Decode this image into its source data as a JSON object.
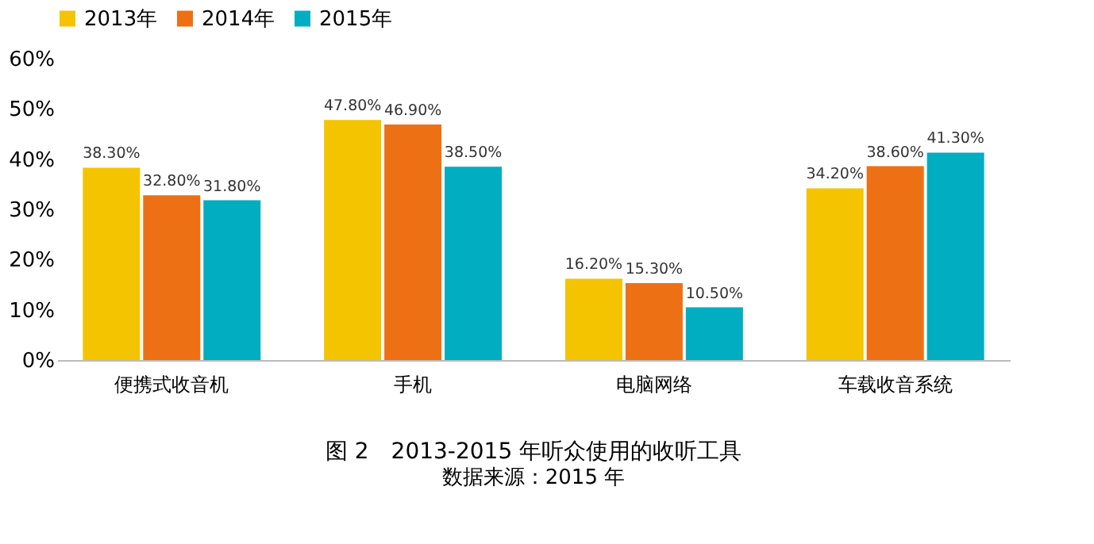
{
  "chart_data": {
    "type": "bar",
    "title": "图 2　2013-2015 年听众使用的收听工具",
    "annotations": [
      "数据来源：2015 年"
    ],
    "categories": [
      "便携式收音机",
      "手机",
      "电脑网络",
      "车载收音系统"
    ],
    "series": [
      {
        "name": "2013年",
        "color": "#f5c400",
        "values": [
          38.3,
          47.8,
          16.2,
          34.2
        ],
        "value_labels": [
          "38.30%",
          "47.80%",
          "16.20%",
          "34.20%"
        ]
      },
      {
        "name": "2014年",
        "color": "#ee7014",
        "values": [
          32.8,
          46.9,
          15.3,
          38.6
        ],
        "value_labels": [
          "32.80%",
          "46.90%",
          "15.30%",
          "38.60%"
        ]
      },
      {
        "name": "2015年",
        "color": "#00adc1",
        "values": [
          31.8,
          38.5,
          10.5,
          41.3
        ],
        "value_labels": [
          "31.80%",
          "38.50%",
          "10.50%",
          "41.30%"
        ]
      }
    ],
    "ylim": [
      0,
      60
    ],
    "yticks": [
      {
        "value": 0,
        "label": "0%"
      },
      {
        "value": 10,
        "label": "10%"
      },
      {
        "value": 20,
        "label": "20%"
      },
      {
        "value": 30,
        "label": "30%"
      },
      {
        "value": 40,
        "label": "40%"
      },
      {
        "value": 50,
        "label": "50%"
      },
      {
        "value": 60,
        "label": "60%"
      }
    ],
    "legend": "top",
    "grid": false
  }
}
